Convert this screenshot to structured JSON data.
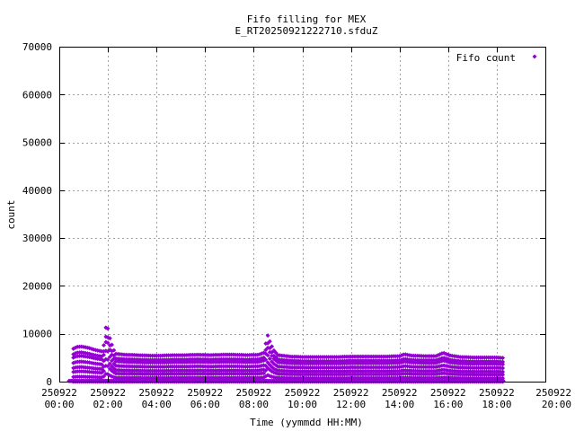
{
  "chart_data": {
    "type": "scatter",
    "title": "Fifo filling for MEX",
    "subtitle": "E_RT20250921222710.sfduZ",
    "xlabel": "Time (yymmdd HH:MM)",
    "ylabel": "count",
    "xlim": [
      "250922 00:00",
      "250922 20:00"
    ],
    "ylim": [
      0,
      70000
    ],
    "yticks": [
      "0",
      "10000",
      "20000",
      "30000",
      "40000",
      "50000",
      "60000",
      "70000"
    ],
    "xticks": [
      {
        "date": "250922",
        "time": "00:00"
      },
      {
        "date": "250922",
        "time": "02:00"
      },
      {
        "date": "250922",
        "time": "04:00"
      },
      {
        "date": "250922",
        "time": "06:00"
      },
      {
        "date": "250922",
        "time": "08:00"
      },
      {
        "date": "250922",
        "time": "10:00"
      },
      {
        "date": "250922",
        "time": "12:00"
      },
      {
        "date": "250922",
        "time": "14:00"
      },
      {
        "date": "250922",
        "time": "16:00"
      },
      {
        "date": "250922",
        "time": "18:00"
      },
      {
        "date": "250922",
        "time": "20:00"
      }
    ],
    "grid": true,
    "legend_position": "top-right",
    "series": [
      {
        "name": "Fifo count",
        "color": "#9400d3",
        "marker": "diamond",
        "description": "Sawtooth fill levels sampled every ~10 min from 00:35 to 18:15; each entry: [hour, peak count]",
        "envelope": [
          [
            0.6,
            7200
          ],
          [
            0.7,
            7600
          ],
          [
            0.9,
            7700
          ],
          [
            1.2,
            7400
          ],
          [
            1.5,
            6900
          ],
          [
            1.8,
            6600
          ],
          [
            1.93,
            12600
          ],
          [
            2.0,
            11600
          ],
          [
            2.1,
            9000
          ],
          [
            2.3,
            6100
          ],
          [
            2.7,
            5900
          ],
          [
            3.2,
            5800
          ],
          [
            3.7,
            5700
          ],
          [
            4.2,
            5700
          ],
          [
            4.7,
            5800
          ],
          [
            5.2,
            5800
          ],
          [
            5.7,
            5900
          ],
          [
            6.2,
            5800
          ],
          [
            6.7,
            5900
          ],
          [
            7.2,
            5900
          ],
          [
            7.7,
            5800
          ],
          [
            8.2,
            5900
          ],
          [
            8.45,
            6400
          ],
          [
            8.55,
            10600
          ],
          [
            8.65,
            9000
          ],
          [
            8.8,
            7000
          ],
          [
            9.0,
            5800
          ],
          [
            9.5,
            5500
          ],
          [
            10.0,
            5400
          ],
          [
            10.5,
            5400
          ],
          [
            11.0,
            5400
          ],
          [
            11.5,
            5400
          ],
          [
            12.0,
            5500
          ],
          [
            12.5,
            5500
          ],
          [
            13.0,
            5500
          ],
          [
            13.5,
            5500
          ],
          [
            14.0,
            5600
          ],
          [
            14.2,
            6000
          ],
          [
            14.5,
            5700
          ],
          [
            15.0,
            5600
          ],
          [
            15.5,
            5600
          ],
          [
            15.8,
            6300
          ],
          [
            16.1,
            5700
          ],
          [
            16.5,
            5400
          ],
          [
            17.0,
            5300
          ],
          [
            17.5,
            5300
          ],
          [
            18.0,
            5300
          ],
          [
            18.2,
            5200
          ]
        ]
      }
    ]
  }
}
